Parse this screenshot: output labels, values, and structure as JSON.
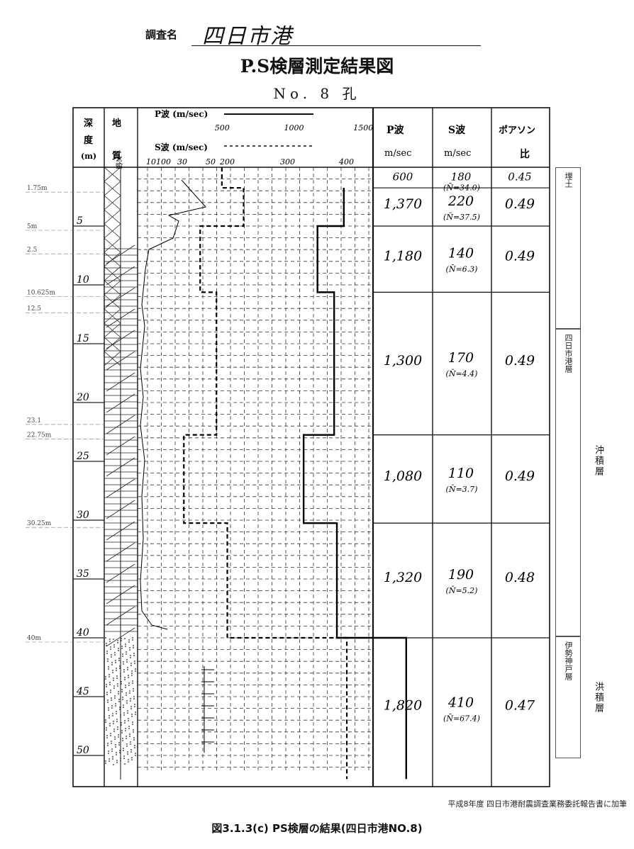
{
  "header": {
    "survey_label": "調査名",
    "survey_name": "四日市港",
    "title": "P.S検層測定結果図",
    "hole_no": "No. 8 孔"
  },
  "column_headers": {
    "depth": "深度(m)",
    "geology": "地質",
    "n_value": "N値",
    "p_wave_scale": "P波 (m/sec)",
    "s_wave_scale": "S波 (m/sec)",
    "p_wave": "P波",
    "p_wave_unit": "m/sec",
    "s_wave": "S波",
    "s_wave_unit": "m/sec",
    "poisson": "ポアソン",
    "poisson_ratio": "比"
  },
  "axis_ticks": {
    "p": [
      "500",
      "1000",
      "1500"
    ],
    "s": [
      "10",
      "100",
      "30",
      "50",
      "200",
      "300",
      "400"
    ],
    "depth": [
      "5",
      "10",
      "15",
      "20",
      "25",
      "30",
      "35",
      "40",
      "45",
      "50"
    ]
  },
  "margin_notes": [
    "1.75m",
    "5m",
    "2.5",
    "10.625m",
    "12.5",
    "22.75m",
    "23.1",
    "30.25m",
    "40m"
  ],
  "layers": [
    {
      "p": "600",
      "s": "180",
      "n": "(N̄=34.0)",
      "poisson": "0.45"
    },
    {
      "p": "1,370",
      "s": "220",
      "n": "(N̄=37.5)",
      "poisson": "0.49"
    },
    {
      "p": "1,180",
      "s": "140",
      "n": "(N̄=6.3)",
      "poisson": "0.49"
    },
    {
      "p": "1,300",
      "s": "170",
      "n": "(N̄=4.4)",
      "poisson": "0.49"
    },
    {
      "p": "1,080",
      "s": "110",
      "n": "(N̄=3.7)",
      "poisson": "0.49"
    },
    {
      "p": "1,320",
      "s": "190",
      "n": "(N̄=5.2)",
      "poisson": "0.48"
    },
    {
      "p": "1,820",
      "s": "410",
      "n": "(N̄=67.4)",
      "poisson": "0.47"
    }
  ],
  "formations": {
    "fill": "埋土",
    "yokkaichi": "四日市港層",
    "ise": "伊勢神戸層",
    "alluvium": "沖積層",
    "diluvium": "洪積層"
  },
  "colors": {
    "fill": "#c89a82",
    "yokkaichi": "#fbc995",
    "ise": "#7fc6f0"
  },
  "caption": {
    "note": "平成8年度 四日市港耐震調査業務委託報告書に加筆",
    "main": "図3.1.3(c) PS検層の結果(四日市港NO.8)"
  },
  "chart_data": {
    "type": "line",
    "title": "P.S検層測定結果図",
    "xlabel": "P波 (m/sec) / S波 (m/sec)",
    "ylabel": "深度(m)",
    "ylim": [
      0,
      52
    ],
    "series": [
      {
        "name": "P波",
        "depth_top": [
          1.75,
          5,
          10.625,
          22.75,
          30.25,
          40
        ],
        "depth_bottom": [
          5,
          10.625,
          22.75,
          30.25,
          40,
          52
        ],
        "values": [
          1370,
          1180,
          1300,
          1080,
          1320,
          1820
        ]
      },
      {
        "name": "S波",
        "depth_top": [
          0,
          1.75,
          5,
          10.625,
          22.75,
          30.25,
          40
        ],
        "depth_bottom": [
          1.75,
          5,
          10.625,
          22.75,
          30.25,
          40,
          52
        ],
        "values": [
          180,
          220,
          140,
          170,
          110,
          190,
          410
        ]
      }
    ]
  }
}
